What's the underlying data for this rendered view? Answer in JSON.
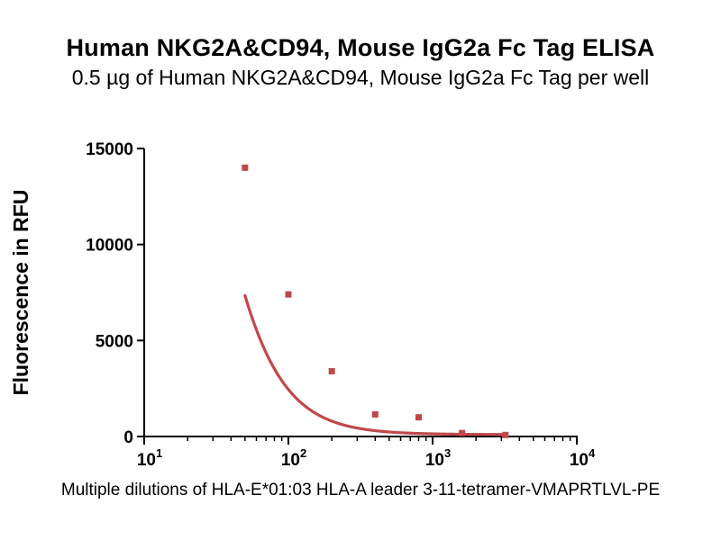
{
  "chart_data": {
    "type": "scatter",
    "title": "Human NKG2A&CD94, Mouse IgG2a Fc Tag ELISA",
    "subtitle": "0.5 µg of Human NKG2A&CD94, Mouse IgG2a Fc Tag per well",
    "xlabel": "Multiple dilutions of HLA-E*01:03 HLA-A leader 3-11-tetramer-VMAPRTLVL-PE",
    "ylabel": "Fluorescence in RFU",
    "xscale": "log",
    "xlim": [
      10,
      10000
    ],
    "ylim": [
      0,
      15000
    ],
    "x_ticks": [
      {
        "value": 10,
        "base": "10",
        "exp": "1"
      },
      {
        "value": 100,
        "base": "10",
        "exp": "2"
      },
      {
        "value": 1000,
        "base": "10",
        "exp": "3"
      },
      {
        "value": 10000,
        "base": "10",
        "exp": "4"
      }
    ],
    "y_ticks": [
      {
        "value": 0,
        "label": "0"
      },
      {
        "value": 5000,
        "label": "5000"
      },
      {
        "value": 10000,
        "label": "10000"
      },
      {
        "value": 15000,
        "label": "15000"
      }
    ],
    "series": [
      {
        "name": "Human NKG2A&CD94, Mouse IgG2a Fc Tag",
        "color": "#c0484b",
        "points": [
          {
            "x": 50,
            "y": 14000
          },
          {
            "x": 100,
            "y": 7400
          },
          {
            "x": 200,
            "y": 3400
          },
          {
            "x": 400,
            "y": 1150
          },
          {
            "x": 800,
            "y": 1000
          },
          {
            "x": 1600,
            "y": 180
          },
          {
            "x": 3200,
            "y": 80
          }
        ],
        "fit": {
          "model": "sigmoidal dose-response",
          "bottom": 100,
          "top": 45000,
          "ec50": 20,
          "hill": 1.8,
          "x_range": [
            50,
            3200
          ]
        }
      }
    ]
  }
}
